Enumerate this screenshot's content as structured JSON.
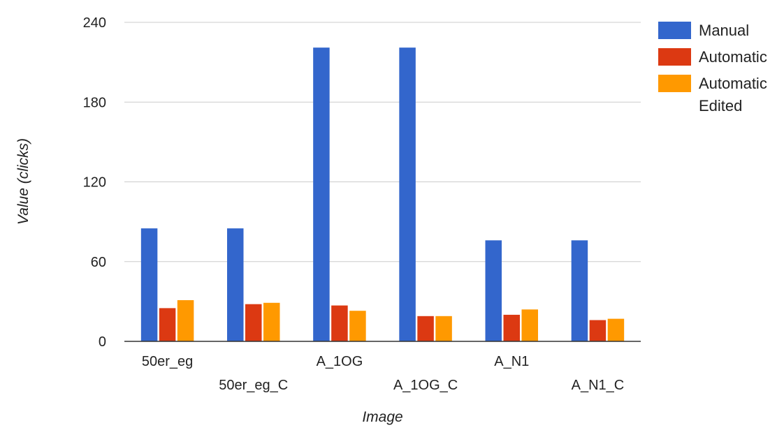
{
  "chart_data": {
    "type": "bar",
    "categories": [
      "50er_eg",
      "50er_eg_C",
      "A_1OG",
      "A_1OG_C",
      "A_N1",
      "A_N1_C"
    ],
    "series": [
      {
        "name": "Manual",
        "color": "#3366cc",
        "values": [
          85,
          85,
          221,
          221,
          76,
          76
        ]
      },
      {
        "name": "Automatic",
        "color": "#dc3912",
        "values": [
          25,
          28,
          27,
          19,
          20,
          16
        ]
      },
      {
        "name": "Automatic Edited",
        "legend_lines": [
          "Automatic",
          "Edited"
        ],
        "color": "#ff9900",
        "values": [
          31,
          29,
          23,
          19,
          24,
          17
        ]
      }
    ],
    "xlabel": "Image",
    "ylabel": "Value (clicks)",
    "ylim": [
      0,
      240
    ],
    "yticks": [
      "0",
      "60",
      "120",
      "180",
      "240"
    ],
    "grid": true,
    "legend_position": "right"
  }
}
